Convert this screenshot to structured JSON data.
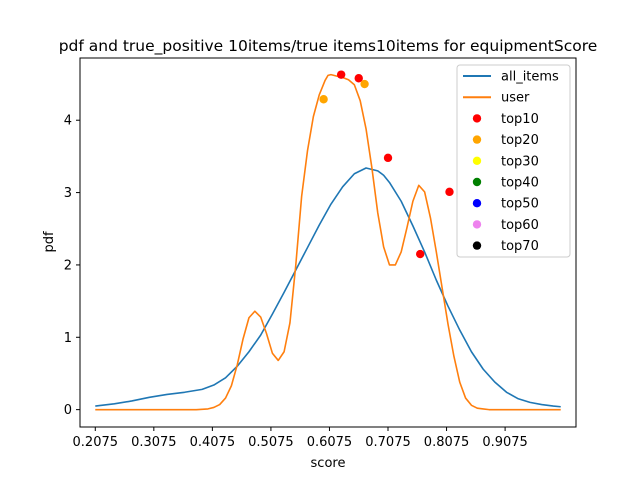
{
  "chart_data": {
    "type": "line",
    "title": "pdf and true_positive 10items/true items10items for equipmentScore",
    "xlabel": "score",
    "ylabel": "pdf",
    "xlim": [
      0.1814,
      1.0286
    ],
    "ylim": [
      -0.24,
      4.86
    ],
    "x_ticks": [
      0.2075,
      0.3075,
      0.4075,
      0.5075,
      0.6075,
      0.7075,
      0.8075,
      0.9075
    ],
    "x_tick_labels": [
      "0.2075",
      "0.3075",
      "0.4075",
      "0.5075",
      "0.6075",
      "0.7075",
      "0.8075",
      "0.9075"
    ],
    "y_ticks": [
      0,
      1,
      2,
      3,
      4
    ],
    "y_tick_labels": [
      "0",
      "1",
      "2",
      "3",
      "4"
    ],
    "grid": false,
    "legend_position": "top-right",
    "series": [
      {
        "name": "all_items",
        "kind": "line",
        "color": "#1f77b4",
        "x": [
          0.2075,
          0.24,
          0.27,
          0.3,
          0.33,
          0.36,
          0.39,
          0.41,
          0.43,
          0.45,
          0.47,
          0.49,
          0.51,
          0.53,
          0.55,
          0.57,
          0.59,
          0.61,
          0.63,
          0.65,
          0.67,
          0.69,
          0.7,
          0.71,
          0.73,
          0.75,
          0.77,
          0.79,
          0.81,
          0.83,
          0.85,
          0.87,
          0.89,
          0.91,
          0.93,
          0.95,
          0.97,
          0.99,
          1.0025
        ],
        "y": [
          0.05,
          0.08,
          0.12,
          0.17,
          0.21,
          0.24,
          0.28,
          0.34,
          0.44,
          0.6,
          0.8,
          1.03,
          1.32,
          1.62,
          1.93,
          2.24,
          2.55,
          2.84,
          3.08,
          3.26,
          3.34,
          3.3,
          3.24,
          3.14,
          2.88,
          2.54,
          2.18,
          1.79,
          1.43,
          1.1,
          0.8,
          0.56,
          0.38,
          0.24,
          0.15,
          0.1,
          0.07,
          0.05,
          0.04
        ]
      },
      {
        "name": "user",
        "kind": "line",
        "color": "#ff7f0e",
        "x": [
          0.2075,
          0.3,
          0.38,
          0.4,
          0.41,
          0.42,
          0.43,
          0.44,
          0.45,
          0.46,
          0.47,
          0.48,
          0.49,
          0.5,
          0.51,
          0.52,
          0.53,
          0.54,
          0.55,
          0.56,
          0.57,
          0.58,
          0.59,
          0.6,
          0.605,
          0.61,
          0.62,
          0.63,
          0.64,
          0.65,
          0.66,
          0.67,
          0.68,
          0.69,
          0.7,
          0.71,
          0.72,
          0.73,
          0.74,
          0.75,
          0.76,
          0.77,
          0.78,
          0.79,
          0.8,
          0.81,
          0.82,
          0.83,
          0.84,
          0.85,
          0.86,
          0.87,
          0.88,
          0.89,
          0.9,
          0.92,
          0.95,
          1.0025
        ],
        "y": [
          0.0,
          0.0,
          0.0,
          0.01,
          0.03,
          0.07,
          0.16,
          0.33,
          0.62,
          0.98,
          1.27,
          1.36,
          1.28,
          1.05,
          0.78,
          0.68,
          0.8,
          1.2,
          2.0,
          2.95,
          3.58,
          4.05,
          4.35,
          4.55,
          4.62,
          4.63,
          4.61,
          4.59,
          4.56,
          4.49,
          4.27,
          3.88,
          3.34,
          2.72,
          2.25,
          2.0,
          2.0,
          2.18,
          2.52,
          2.88,
          3.1,
          3.01,
          2.65,
          2.18,
          1.68,
          1.18,
          0.74,
          0.38,
          0.16,
          0.06,
          0.02,
          0.01,
          0.0,
          0.0,
          0.0,
          0.0,
          0.0,
          0.0
        ]
      },
      {
        "name": "top10",
        "kind": "scatter",
        "color": "#ff0000",
        "points": [
          [
            0.6275,
            4.63
          ],
          [
            0.6575,
            4.58
          ],
          [
            0.7075,
            3.48
          ],
          [
            0.7625,
            2.15
          ],
          [
            0.8125,
            3.01
          ]
        ]
      },
      {
        "name": "top20",
        "kind": "scatter",
        "color": "#ffa500",
        "points": [
          [
            0.5975,
            4.29
          ],
          [
            0.6675,
            4.5
          ]
        ]
      },
      {
        "name": "top30",
        "kind": "scatter",
        "color": "#ffff00",
        "points": []
      },
      {
        "name": "top40",
        "kind": "scatter",
        "color": "#008000",
        "points": []
      },
      {
        "name": "top50",
        "kind": "scatter",
        "color": "#0000ff",
        "points": []
      },
      {
        "name": "top60",
        "kind": "scatter",
        "color": "#ee82ee",
        "points": []
      },
      {
        "name": "top70",
        "kind": "scatter",
        "color": "#000000",
        "points": []
      }
    ]
  }
}
